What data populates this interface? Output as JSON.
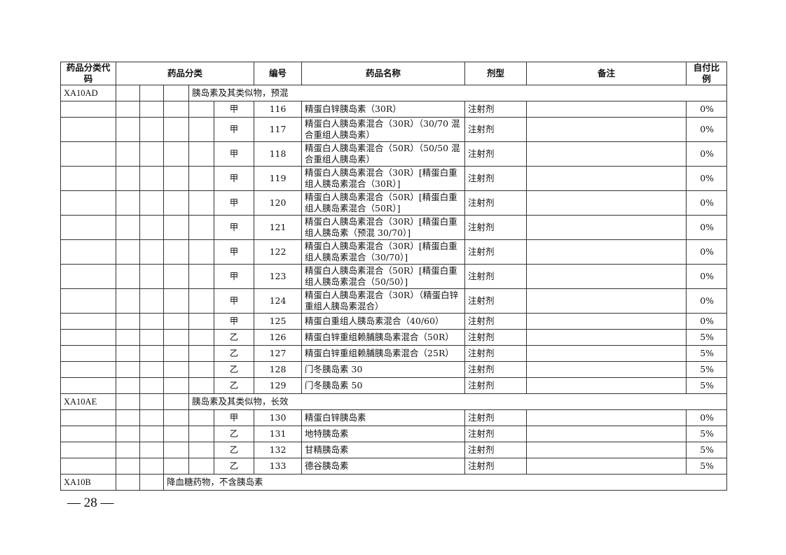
{
  "headers": {
    "code": "药品分类代码",
    "category": "药品分类",
    "number": "编号",
    "name": "药品名称",
    "form": "剂型",
    "note": "备注",
    "ratio": "自付比例"
  },
  "sections": [
    {
      "code": "XA10AD",
      "title": "胰岛素及其类似物，预混"
    },
    {
      "code": "XA10AE",
      "title": "胰岛素及其类似物，长效"
    },
    {
      "code": "XA10B",
      "title": "降血糖药物，不含胰岛素"
    }
  ],
  "rows": [
    {
      "grade": "甲",
      "number": "116",
      "name": "精蛋白锌胰岛素（30R）",
      "form": "注射剂",
      "note": "",
      "ratio": "0%"
    },
    {
      "grade": "甲",
      "number": "117",
      "name": "精蛋白人胰岛素混合（30R）（30/70 混合重组人胰岛素）",
      "form": "注射剂",
      "note": "",
      "ratio": "0%"
    },
    {
      "grade": "甲",
      "number": "118",
      "name": "精蛋白人胰岛素混合（50R）（50/50 混合重组人胰岛素）",
      "form": "注射剂",
      "note": "",
      "ratio": "0%"
    },
    {
      "grade": "甲",
      "number": "119",
      "name": "精蛋白人胰岛素混合（30R）[精蛋白重组人胰岛素混合（30R）]",
      "form": "注射剂",
      "note": "",
      "ratio": "0%"
    },
    {
      "grade": "甲",
      "number": "120",
      "name": "精蛋白人胰岛素混合（50R）[精蛋白重组人胰岛素混合（50R）]",
      "form": "注射剂",
      "note": "",
      "ratio": "0%"
    },
    {
      "grade": "甲",
      "number": "121",
      "name": "精蛋白人胰岛素混合（30R）[精蛋白重组人胰岛素（预混 30/70）]",
      "form": "注射剂",
      "note": "",
      "ratio": "0%"
    },
    {
      "grade": "甲",
      "number": "122",
      "name": "精蛋白人胰岛素混合（30R）[精蛋白重组人胰岛素混合（30/70）]",
      "form": "注射剂",
      "note": "",
      "ratio": "0%"
    },
    {
      "grade": "甲",
      "number": "123",
      "name": "精蛋白人胰岛素混合（50R）[精蛋白重组人胰岛素混合（50/50）]",
      "form": "注射剂",
      "note": "",
      "ratio": "0%"
    },
    {
      "grade": "甲",
      "number": "124",
      "name": "精蛋白人胰岛素混合（30R）（精蛋白锌重组人胰岛素混合）",
      "form": "注射剂",
      "note": "",
      "ratio": "0%"
    },
    {
      "grade": "甲",
      "number": "125",
      "name": "精蛋白重组人胰岛素混合（40/60）",
      "form": "注射剂",
      "note": "",
      "ratio": "0%"
    },
    {
      "grade": "乙",
      "number": "126",
      "name": "精蛋白锌重组赖脯胰岛素混合（50R）",
      "form": "注射剂",
      "note": "",
      "ratio": "5%"
    },
    {
      "grade": "乙",
      "number": "127",
      "name": "精蛋白锌重组赖脯胰岛素混合（25R）",
      "form": "注射剂",
      "note": "",
      "ratio": "5%"
    },
    {
      "grade": "乙",
      "number": "128",
      "name": "门冬胰岛素 30",
      "form": "注射剂",
      "note": "",
      "ratio": "5%"
    },
    {
      "grade": "乙",
      "number": "129",
      "name": "门冬胰岛素 50",
      "form": "注射剂",
      "note": "",
      "ratio": "5%"
    },
    {
      "grade": "甲",
      "number": "130",
      "name": "精蛋白锌胰岛素",
      "form": "注射剂",
      "note": "",
      "ratio": "0%"
    },
    {
      "grade": "乙",
      "number": "131",
      "name": "地特胰岛素",
      "form": "注射剂",
      "note": "",
      "ratio": "5%"
    },
    {
      "grade": "乙",
      "number": "132",
      "name": "甘精胰岛素",
      "form": "注射剂",
      "note": "",
      "ratio": "5%"
    },
    {
      "grade": "乙",
      "number": "133",
      "name": "德谷胰岛素",
      "form": "注射剂",
      "note": "",
      "ratio": "5%"
    }
  ],
  "page_number": "— 28 —"
}
